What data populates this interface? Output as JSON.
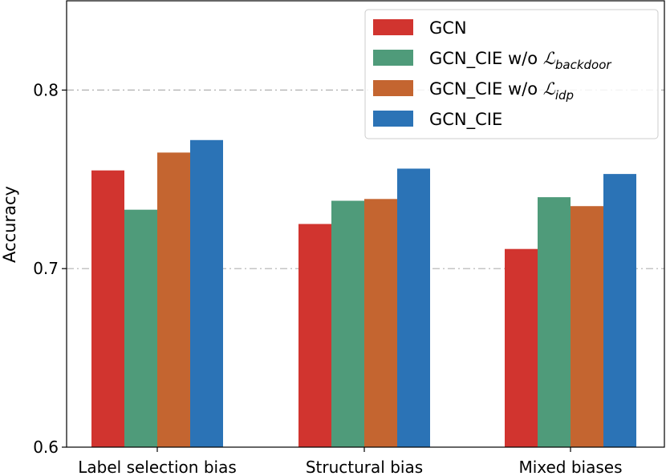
{
  "chart_data": {
    "type": "bar",
    "title": "",
    "xlabel": "",
    "ylabel": "Accuracy",
    "ylim": [
      0.6,
      0.85
    ],
    "yticks": [
      "0.6",
      "0.7",
      "0.8"
    ],
    "grid": "horizontal dash-dot at 0.7 and 0.8",
    "categories": [
      "Label selection bias",
      "Structural bias",
      "Mixed biases"
    ],
    "series": [
      {
        "name": "GCN",
        "color": "#d1342f",
        "values": [
          0.755,
          0.725,
          0.711
        ]
      },
      {
        "name": "GCN_CIE w/o L_backdoor",
        "color": "#4f9b7a",
        "values": [
          0.733,
          0.738,
          0.74
        ]
      },
      {
        "name": "GCN_CIE w/o L_idp",
        "color": "#c46530",
        "values": [
          0.765,
          0.739,
          0.735
        ]
      },
      {
        "name": "GCN_CIE",
        "color": "#2b73b6",
        "values": [
          0.772,
          0.756,
          0.753
        ]
      }
    ],
    "legend": {
      "placement": "top-right",
      "entries": [
        {
          "main": "GCN"
        },
        {
          "main": "GCN_CIE w/o ",
          "script": "ℒ",
          "sub": "backdoor"
        },
        {
          "main": "GCN_CIE w/o ",
          "script": "ℒ",
          "sub": "idp"
        },
        {
          "main": "GCN_CIE"
        }
      ]
    }
  }
}
